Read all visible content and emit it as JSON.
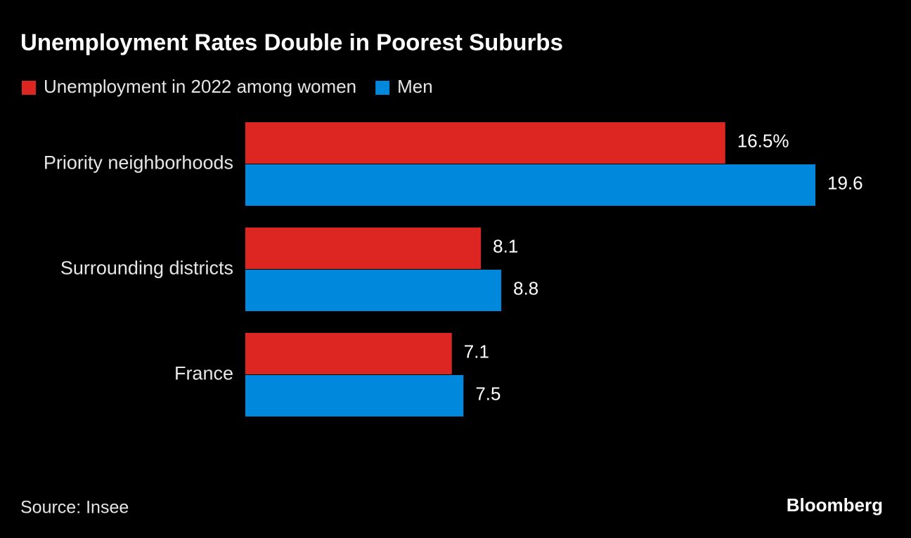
{
  "chart_data": {
    "type": "hbar",
    "title": "Unemployment Rates Double in Poorest Suburbs",
    "categories": [
      "Priority neighborhoods",
      "Surrounding districts",
      "France"
    ],
    "series": [
      {
        "name": "Unemployment in 2022 among women",
        "color": "#dd2621",
        "values": [
          16.5,
          8.1,
          7.1
        ],
        "value_labels": [
          "16.5%",
          "8.1",
          "7.1"
        ]
      },
      {
        "name": "Men",
        "color": "#0088dd",
        "values": [
          19.6,
          8.8,
          7.5
        ]
      }
    ],
    "source": "Source: Insee",
    "brand": "Bloomberg"
  }
}
